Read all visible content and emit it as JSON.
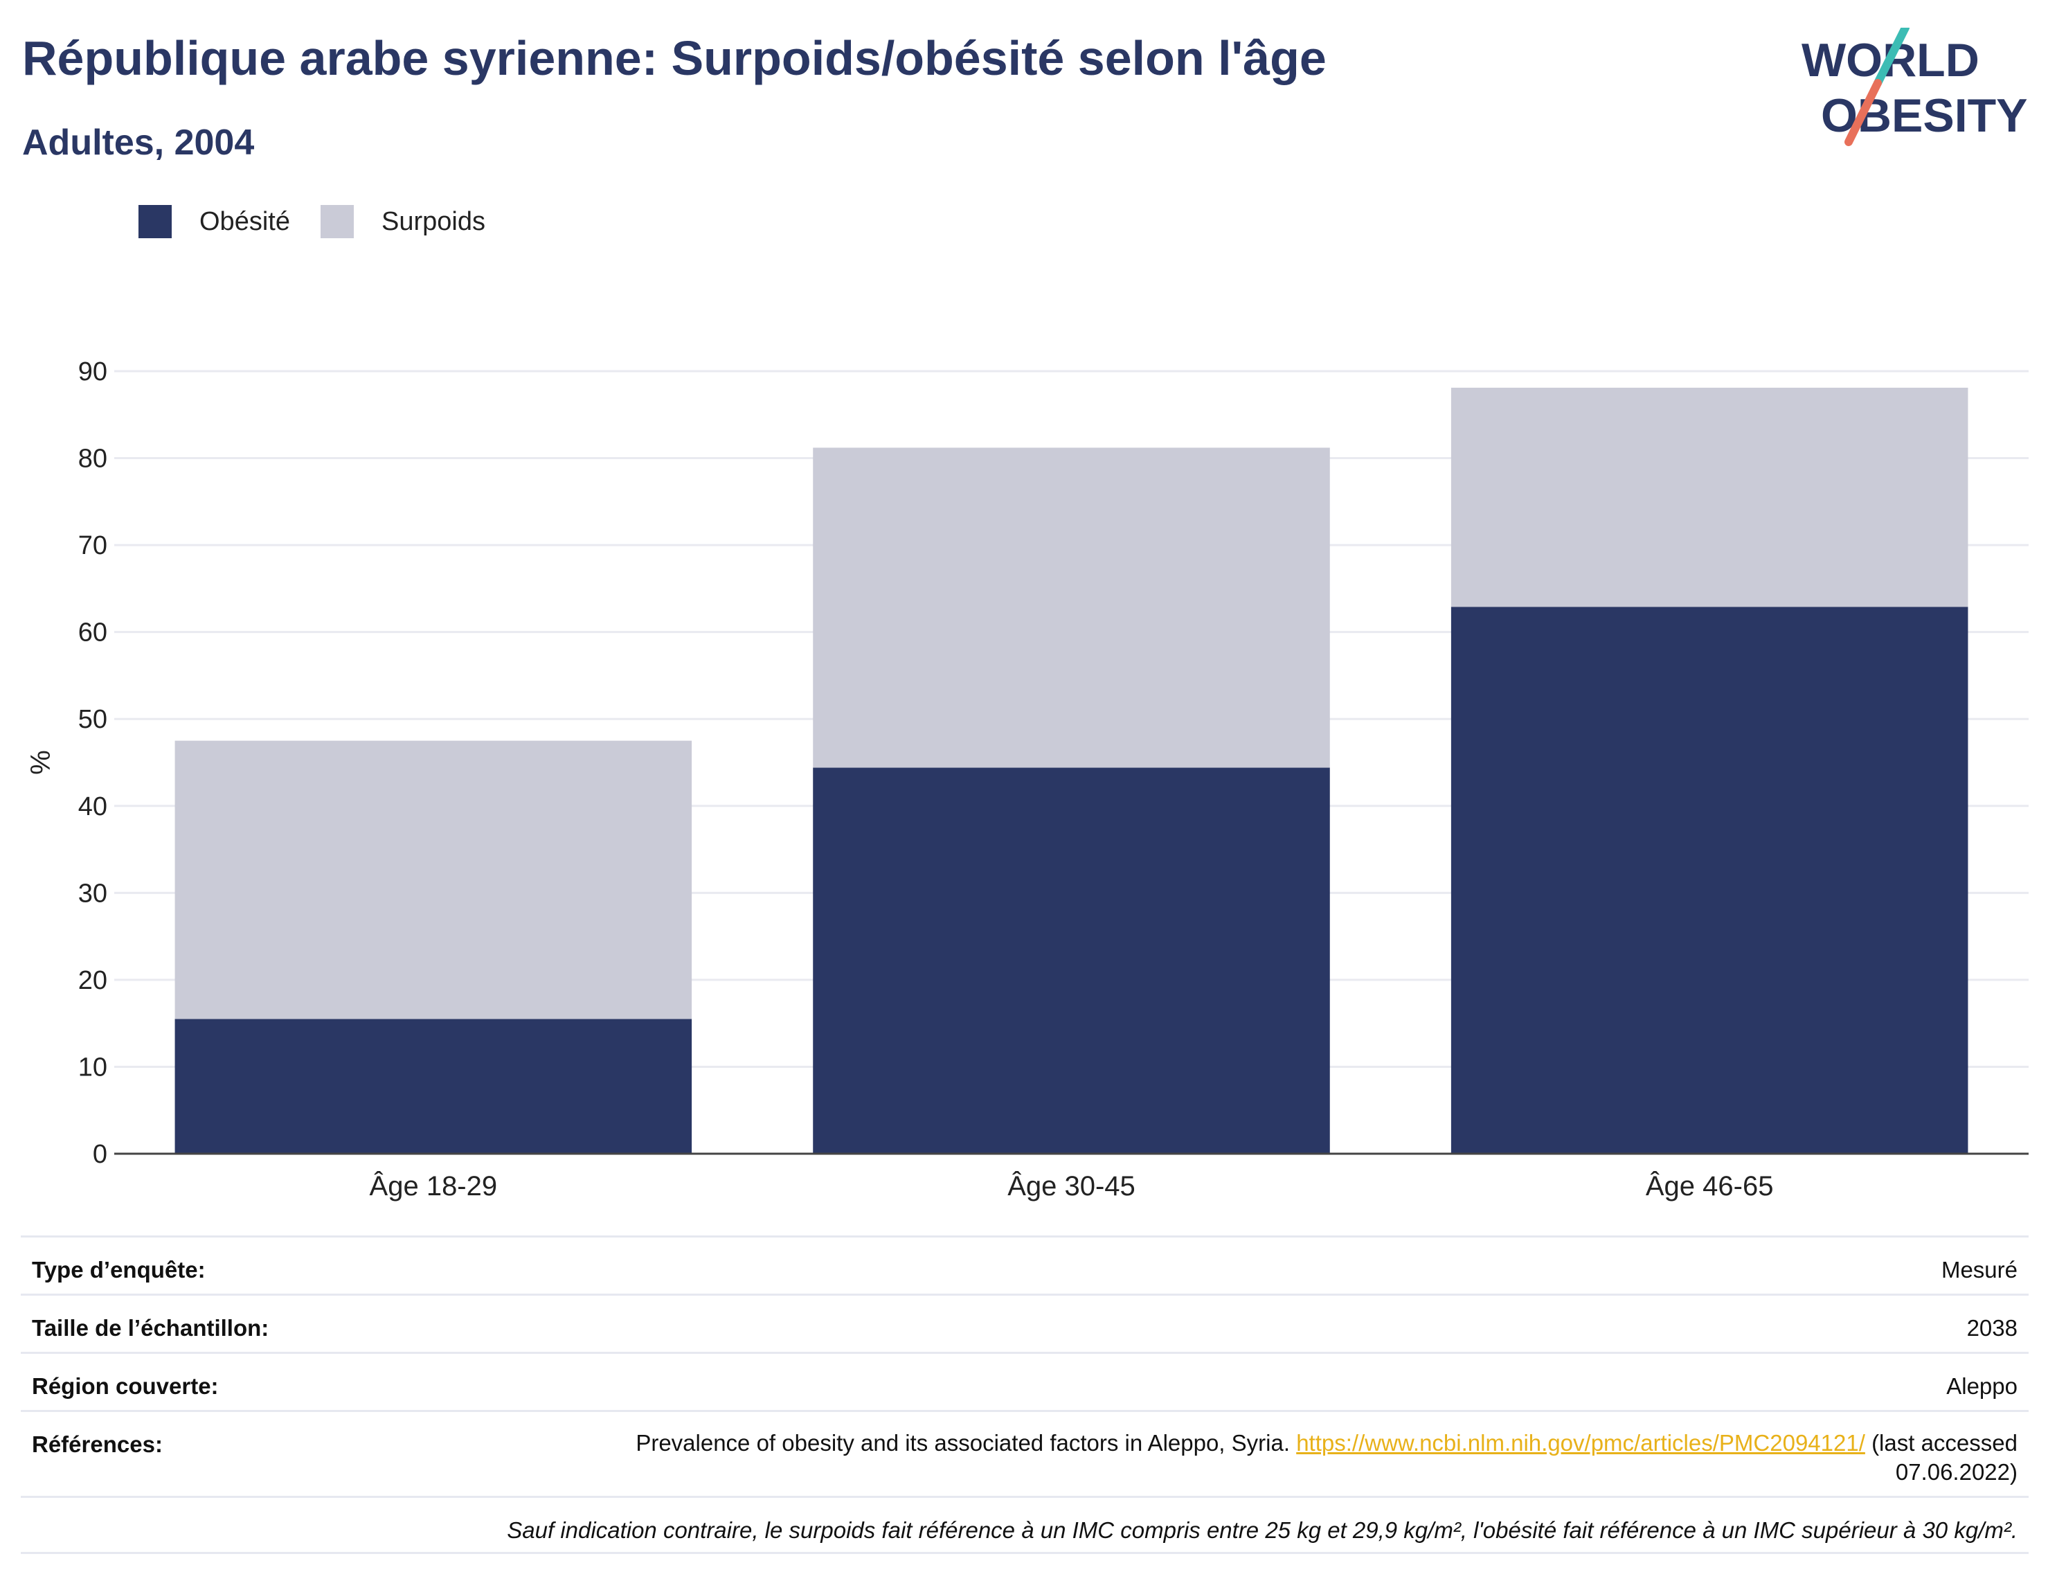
{
  "header": {
    "title": "République arabe syrienne: Surpoids/obésité selon l'âge",
    "subtitle": "Adultes, 2004"
  },
  "logo": {
    "line1": "WORLD",
    "line2": "OBESITY"
  },
  "colors": {
    "obesity": "#2a3764",
    "overweight": "#cacbd7",
    "title": "#2a3764",
    "link": "#e8b119",
    "grid": "#e9eaf0"
  },
  "chart_data": {
    "type": "bar",
    "stacked": true,
    "categories": [
      "Âge 18-29",
      "Âge 30-45",
      "Âge 46-65"
    ],
    "series": [
      {
        "name": "Obésité",
        "values": [
          15.5,
          44.4,
          62.9
        ]
      },
      {
        "name": "Surpoids",
        "values": [
          32.0,
          36.8,
          25.2
        ]
      }
    ],
    "ylabel": "%",
    "ylim": [
      0,
      90
    ],
    "yticks": [
      0,
      10,
      20,
      30,
      40,
      50,
      60,
      70,
      80,
      90
    ],
    "grid": true,
    "legend_position": "top-left"
  },
  "info": {
    "survey_type_label": "Type d’enquête:",
    "survey_type_value": "Mesuré",
    "sample_size_label": "Taille de l’échantillon:",
    "sample_size_value": "2038",
    "region_label": "Région couverte:",
    "region_value": "Aleppo",
    "references_label": "Références:",
    "references_text": "Prevalence of obesity and its associated factors in Aleppo, Syria.",
    "references_link": "https://www.ncbi.nlm.nih.gov/pmc/articles/PMC2094121/",
    "references_suffix": "(last accessed 07.06.2022)",
    "note": "Sauf indication contraire, le surpoids fait référence à un IMC compris entre 25 kg et 29,9 kg/m², l'obésité fait référence à un IMC supérieur à 30 kg/m²."
  }
}
